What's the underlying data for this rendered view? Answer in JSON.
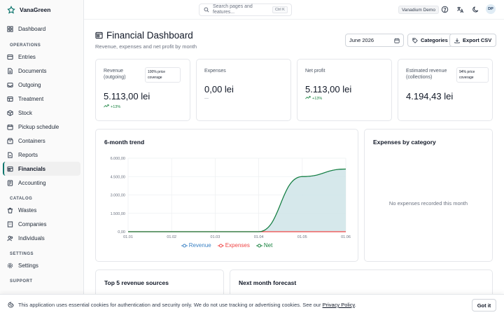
{
  "app": {
    "name": "VanaGreen"
  },
  "sidebar": {
    "top": {
      "label": "Dashboard",
      "icon": "dashboard-icon"
    },
    "sections": [
      {
        "label": "OPERATIONS",
        "items": [
          {
            "label": "Entries",
            "icon": "entries-icon"
          },
          {
            "label": "Documents",
            "icon": "documents-icon"
          },
          {
            "label": "Outgoing",
            "icon": "outgoing-icon"
          },
          {
            "label": "Treatment",
            "icon": "treatment-icon"
          },
          {
            "label": "Stock",
            "icon": "stock-icon"
          },
          {
            "label": "Pickup schedule",
            "icon": "calendar-icon"
          },
          {
            "label": "Containers",
            "icon": "containers-icon"
          },
          {
            "label": "Reports",
            "icon": "reports-icon"
          },
          {
            "label": "Financials",
            "icon": "financials-icon",
            "active": true
          },
          {
            "label": "Accounting",
            "icon": "accounting-icon"
          }
        ]
      },
      {
        "label": "CATALOG",
        "items": [
          {
            "label": "Wastes",
            "icon": "wastes-icon"
          },
          {
            "label": "Companies",
            "icon": "companies-icon"
          },
          {
            "label": "Individuals",
            "icon": "individuals-icon"
          }
        ]
      },
      {
        "label": "SETTINGS",
        "items": [
          {
            "label": "Settings",
            "icon": "gear-icon"
          }
        ]
      },
      {
        "label": "SUPPORT",
        "items": []
      }
    ]
  },
  "topbar": {
    "search_placeholder": "Search pages and features...",
    "shortcut": "Ctrl K",
    "workspace": "Vanadium Demo",
    "avatar_initials": "DP"
  },
  "page": {
    "title": "Financial Dashboard",
    "subtitle": "Revenue, expenses and net profit by month",
    "month": "June 2026",
    "categories_label": "Categories",
    "export_label": "Export CSV"
  },
  "kpis": {
    "revenue": {
      "label": "Revenue (outgoing)",
      "badge": "100% price coverage",
      "value": "5.113,00 lei",
      "delta": "+13%"
    },
    "expenses": {
      "label": "Expenses",
      "value": "0,00 lei",
      "delta": "—"
    },
    "net": {
      "label": "Net profit",
      "value": "5.113,00 lei",
      "delta": "+13%"
    },
    "estimated": {
      "label": "Estimated revenue (collections)",
      "badge": "94% price coverage",
      "value": "4.194,43 lei"
    }
  },
  "trend": {
    "title": "6-month trend"
  },
  "expenses_by_category": {
    "title": "Expenses by category",
    "empty": "No expenses recorded this month"
  },
  "bottom": {
    "top5_title": "Top 5 revenue sources",
    "forecast_title": "Next month forecast"
  },
  "cookie": {
    "text": "This application uses essential cookies for authentication and security only. We do not use tracking or advertising cookies. See our",
    "link": "Privacy Policy",
    "end": ".",
    "button": "Got it"
  },
  "colors": {
    "revenue": "#3b82c4",
    "expenses": "#ef4444",
    "net": "#15803d",
    "net_fill": "#cfe4e8",
    "accent": "#0f766e"
  },
  "chart_data": {
    "type": "area",
    "title": "6-month trend",
    "categories": [
      "01.01",
      "01.02",
      "01.03",
      "01.04",
      "01.05",
      "01.06"
    ],
    "ylim": [
      0,
      6000
    ],
    "yticks": [
      "0,00",
      "1.500,00",
      "3.000,00",
      "4.500,00",
      "6.000,00"
    ],
    "ytick_values": [
      0,
      1500,
      3000,
      4500,
      6000
    ],
    "series": [
      {
        "name": "Revenue",
        "values": [
          0,
          0,
          0,
          0,
          4500,
          5113
        ],
        "color": "#3b82c4"
      },
      {
        "name": "Expenses",
        "values": [
          0,
          0,
          0,
          0,
          0,
          0
        ],
        "color": "#ef4444"
      },
      {
        "name": "Net",
        "values": [
          0,
          0,
          0,
          0,
          4500,
          5113
        ],
        "color": "#15803d"
      }
    ],
    "grid": true,
    "legend": "bottom"
  }
}
